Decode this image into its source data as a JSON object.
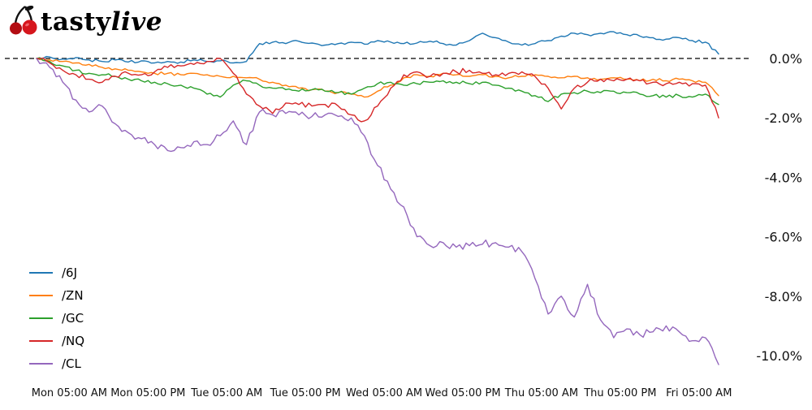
{
  "logo": {
    "brand_tasty": "tasty",
    "brand_live": "live",
    "cherry_color": "#d6161d",
    "cherry_dark": "#b30d13",
    "stem_color": "#111111"
  },
  "chart_data": {
    "type": "line",
    "title": "",
    "xlabel": "",
    "ylabel": "",
    "grid": false,
    "legend_position": "lower left",
    "zero_line": {
      "value": 0,
      "style": "dashed",
      "color": "#000000",
      "label": "0.0%"
    },
    "xlim": [
      0,
      104
    ],
    "ylim": [
      -10.6,
      1.1
    ],
    "x_tick_labels": [
      "Mon 05:00 AM",
      "Mon 05:00 PM",
      "Tue 05:00 AM",
      "Tue 05:00 PM",
      "Wed 05:00 AM",
      "Wed 05:00 PM",
      "Thu 05:00 AM",
      "Thu 05:00 PM",
      "Fri 05:00 AM"
    ],
    "x_tick_hours": [
      5,
      17,
      29,
      41,
      53,
      65,
      77,
      89,
      101
    ],
    "y_tick_labels": [
      "0.0%",
      "-2.0%",
      "-4.0%",
      "-6.0%",
      "-8.0%",
      "-10.0%"
    ],
    "y_tick_values": [
      0,
      -2,
      -4,
      -6,
      -8,
      -10
    ],
    "x_hours": [
      0,
      2,
      4,
      6,
      8,
      10,
      12,
      14,
      16,
      18,
      20,
      22,
      24,
      26,
      28,
      30,
      32,
      34,
      36,
      38,
      40,
      42,
      44,
      46,
      48,
      50,
      52,
      54,
      56,
      58,
      60,
      62,
      64,
      66,
      68,
      70,
      72,
      74,
      76,
      78,
      80,
      82,
      84,
      86,
      88,
      90,
      92,
      94,
      96,
      98,
      100,
      102,
      104
    ],
    "series": [
      {
        "name": "/6J",
        "color": "#1f77b4",
        "values": [
          0.0,
          0.05,
          -0.02,
          0.03,
          -0.05,
          -0.1,
          -0.05,
          -0.12,
          -0.08,
          -0.15,
          -0.1,
          -0.12,
          -0.05,
          -0.1,
          -0.08,
          -0.15,
          -0.1,
          0.5,
          0.55,
          0.5,
          0.58,
          0.52,
          0.45,
          0.5,
          0.55,
          0.48,
          0.6,
          0.55,
          0.5,
          0.52,
          0.58,
          0.5,
          0.45,
          0.6,
          0.85,
          0.7,
          0.55,
          0.45,
          0.5,
          0.6,
          0.75,
          0.85,
          0.8,
          0.85,
          0.9,
          0.8,
          0.75,
          0.7,
          0.65,
          0.7,
          0.6,
          0.55,
          0.15
        ]
      },
      {
        "name": "/ZN",
        "color": "#ff7f0e",
        "values": [
          0.0,
          -0.05,
          -0.1,
          -0.15,
          -0.2,
          -0.3,
          -0.35,
          -0.4,
          -0.45,
          -0.5,
          -0.5,
          -0.55,
          -0.5,
          -0.55,
          -0.6,
          -0.6,
          -0.65,
          -0.7,
          -0.8,
          -0.9,
          -1.0,
          -1.05,
          -1.1,
          -1.15,
          -1.2,
          -1.3,
          -1.1,
          -0.9,
          -0.65,
          -0.55,
          -0.6,
          -0.5,
          -0.55,
          -0.6,
          -0.55,
          -0.6,
          -0.65,
          -0.6,
          -0.55,
          -0.6,
          -0.65,
          -0.6,
          -0.65,
          -0.7,
          -0.65,
          -0.7,
          -0.75,
          -0.7,
          -0.75,
          -0.7,
          -0.75,
          -0.8,
          -1.25
        ]
      },
      {
        "name": "/GC",
        "color": "#2ca02c",
        "values": [
          0.0,
          -0.1,
          -0.25,
          -0.4,
          -0.5,
          -0.55,
          -0.6,
          -0.7,
          -0.75,
          -0.8,
          -0.85,
          -0.9,
          -1.0,
          -1.2,
          -1.3,
          -0.9,
          -0.75,
          -0.9,
          -1.0,
          -1.05,
          -1.1,
          -1.05,
          -1.1,
          -1.15,
          -1.2,
          -1.0,
          -0.85,
          -0.8,
          -0.9,
          -0.85,
          -0.8,
          -0.75,
          -0.8,
          -0.85,
          -0.8,
          -0.9,
          -1.0,
          -1.1,
          -1.25,
          -1.45,
          -1.2,
          -1.15,
          -1.1,
          -1.15,
          -1.1,
          -1.15,
          -1.2,
          -1.25,
          -1.3,
          -1.25,
          -1.3,
          -1.2,
          -1.55
        ]
      },
      {
        "name": "/NQ",
        "color": "#d62728",
        "values": [
          0.0,
          -0.15,
          -0.4,
          -0.55,
          -0.7,
          -0.8,
          -0.6,
          -0.5,
          -0.55,
          -0.45,
          -0.3,
          -0.25,
          -0.2,
          -0.1,
          0.0,
          -0.5,
          -1.2,
          -1.6,
          -1.85,
          -1.5,
          -1.55,
          -1.6,
          -1.55,
          -1.6,
          -1.9,
          -2.1,
          -1.6,
          -1.0,
          -0.55,
          -0.45,
          -0.6,
          -0.5,
          -0.45,
          -0.4,
          -0.5,
          -0.55,
          -0.5,
          -0.45,
          -0.6,
          -1.0,
          -1.7,
          -1.0,
          -0.8,
          -0.7,
          -0.75,
          -0.7,
          -0.75,
          -0.8,
          -0.85,
          -0.8,
          -0.85,
          -0.9,
          -2.0
        ]
      },
      {
        "name": "/CL",
        "color": "#9467bd",
        "values": [
          0.0,
          -0.3,
          -0.8,
          -1.4,
          -1.8,
          -1.6,
          -2.2,
          -2.5,
          -2.7,
          -2.9,
          -3.1,
          -3.0,
          -2.8,
          -2.9,
          -2.6,
          -2.1,
          -2.9,
          -1.8,
          -1.9,
          -1.85,
          -1.9,
          -1.95,
          -1.9,
          -1.95,
          -2.0,
          -2.6,
          -3.6,
          -4.4,
          -5.0,
          -6.0,
          -6.3,
          -6.2,
          -6.35,
          -6.3,
          -6.25,
          -6.2,
          -6.35,
          -6.5,
          -7.4,
          -8.6,
          -8.0,
          -8.7,
          -7.6,
          -8.8,
          -9.4,
          -9.1,
          -9.3,
          -9.2,
          -9.0,
          -9.2,
          -9.5,
          -9.4,
          -10.3
        ]
      }
    ]
  }
}
